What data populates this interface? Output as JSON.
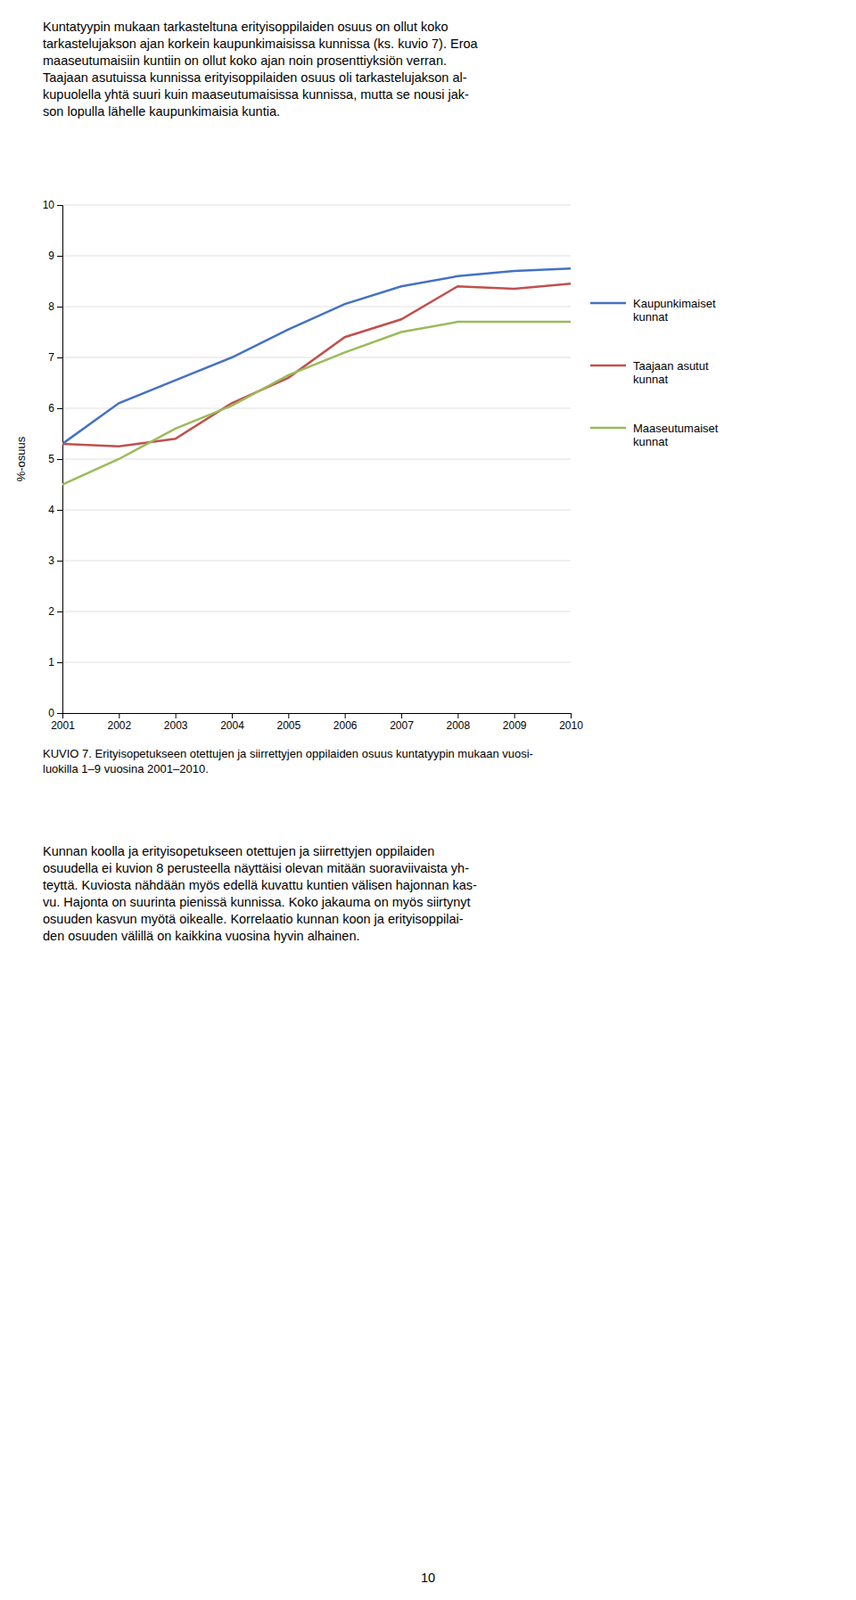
{
  "text_above": [
    "Kuntatyypin mukaan tarkasteltuna erityisoppilaiden osuus on ollut koko",
    "tarkastelujakson ajan korkein kaupunkimaisissa kunnissa (ks. kuvio 7). Eroa",
    "maaseutumaisiin kuntiin on ollut koko ajan noin prosenttiyksiön verran.",
    "Taajaan asutuissa kunnissa erityisoppilaiden osuus oli tarkastelujakson al-",
    "kupuolella yhtä suuri kuin maaseutumaisissa kunnissa, mutta se nousi jak-",
    "son lopulla lähelle kaupunkimaisia kuntia."
  ],
  "chart_data": {
    "type": "line",
    "title": "KUVIO 7. Erityisopetukseen otettujen ja siirrettyjen oppilaiden osuus kuntatyypin mukaan vuosi-\nluokilla 1–9 vuosina 2001–2010.",
    "y_label": "%-osuus",
    "x": [
      2001,
      2002,
      2003,
      2004,
      2005,
      2006,
      2007,
      2008,
      2009,
      2010
    ],
    "series": [
      {
        "name": "Kaupunkimaiset\nkunnat",
        "color": "#4472C4",
        "values": [
          5.3,
          6.1,
          6.55,
          7.0,
          7.55,
          8.05,
          8.4,
          8.6,
          8.7,
          8.75
        ]
      },
      {
        "name": "Taajaan asutut\nkunnat",
        "color": "#C0504D",
        "values": [
          5.3,
          5.25,
          5.4,
          6.1,
          6.6,
          7.4,
          7.75,
          8.4,
          8.35,
          8.45
        ]
      },
      {
        "name": "Maaseutumaiset\nkunnat",
        "color": "#9BBB59",
        "values": [
          4.5,
          5.0,
          5.6,
          6.05,
          6.65,
          7.1,
          7.5,
          7.7,
          7.7,
          7.7
        ]
      }
    ],
    "xlim": [
      2001,
      2010
    ],
    "xticks": [
      2001,
      2002,
      2003,
      2004,
      2005,
      2006,
      2007,
      2008,
      2009,
      2010
    ],
    "ylim": [
      0,
      10
    ],
    "yticks": [
      0,
      1,
      2,
      3,
      4,
      5,
      6,
      7,
      8,
      9,
      10
    ],
    "grid": true,
    "legend": "right"
  },
  "text_below": [
    "Kunnan koolla ja erityisopetukseen otettujen ja siirrettyjen oppilaiden",
    "osuudella ei kuvion 8 perusteella näyttäisi olevan mitään suoraviivaista yh-",
    "teyttä. Kuviosta nähdään myös edellä kuvattu kuntien välisen hajonnan kas-",
    "vu. Hajonta on suurinta pienissä kunnissa. Koko jakauma on myös siirtynyt",
    "osuuden kasvun myötä oikealle. Korrelaatio kunnan koon ja erityisoppilai-",
    "den osuuden välillä on kaikkina vuosina hyvin alhainen."
  ],
  "page_number": "10"
}
